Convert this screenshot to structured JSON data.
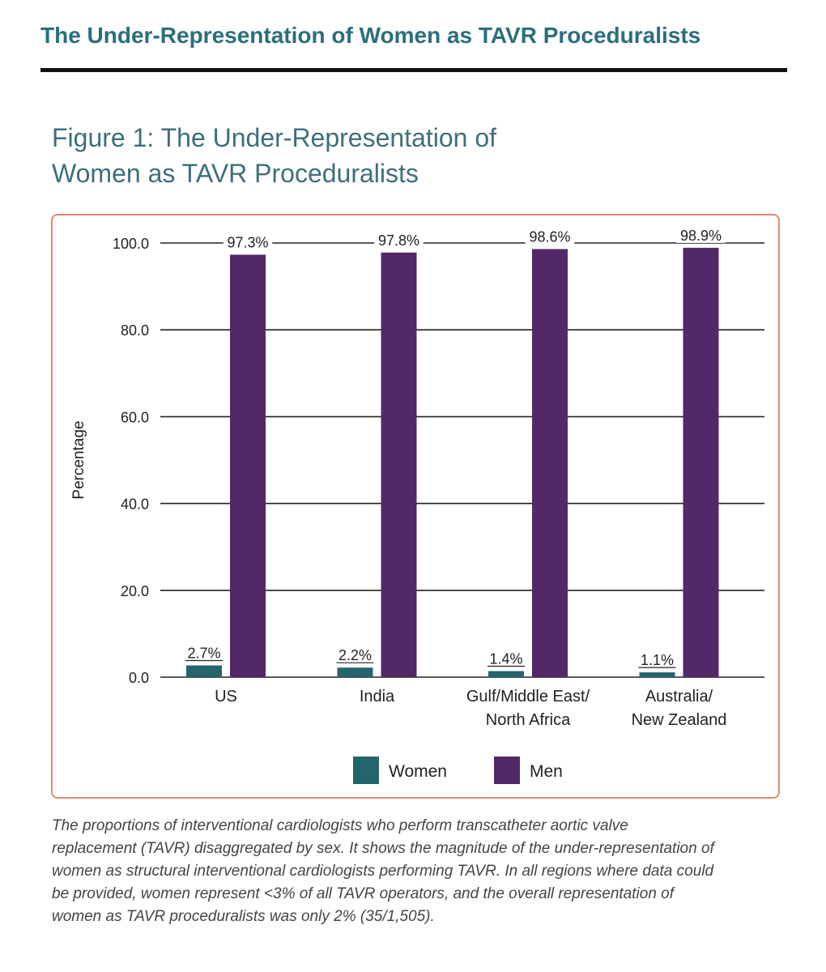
{
  "header": {
    "title": "The Under-Representation of Women as TAVR Proceduralists"
  },
  "figure": {
    "title_line1": "Figure 1: The Under-Representation of",
    "title_line2": "Women as TAVR Proceduralists",
    "caption_lines": [
      "The proportions of interventional cardiologists who perform transcatheter aortic valve",
      "replacement (TAVR) disaggregated by sex. It shows the magnitude of the under-representation of",
      "women as structural interventional cardiologists performing TAVR. In all regions where data could",
      "be provided, women represent <3% of all TAVR operators, and the overall representation of",
      "women as TAVR proceduralists was only 2% (35/1,505)."
    ]
  },
  "chart_data": {
    "type": "bar",
    "title": "",
    "xlabel": "",
    "ylabel": "Percentage",
    "ylim": [
      0,
      100
    ],
    "yticks": [
      "0.0",
      "20.0",
      "40.0",
      "60.0",
      "80.0",
      "100.0"
    ],
    "grid": true,
    "legend_position": "bottom",
    "categories": [
      [
        "US"
      ],
      [
        "India"
      ],
      [
        "Gulf/Middle East/",
        "North Africa"
      ],
      [
        "Australia/",
        "New Zealand"
      ]
    ],
    "series": [
      {
        "name": "Women",
        "color": "#24646c",
        "values": [
          2.7,
          2.2,
          1.4,
          1.1
        ],
        "labels": [
          "2.7%",
          "2.2%",
          "1.4%",
          "1.1%"
        ]
      },
      {
        "name": "Men",
        "color": "#522868",
        "values": [
          97.3,
          97.8,
          98.6,
          98.9
        ],
        "labels": [
          "97.3%",
          "97.8%",
          "98.6%",
          "98.9%"
        ]
      }
    ]
  }
}
